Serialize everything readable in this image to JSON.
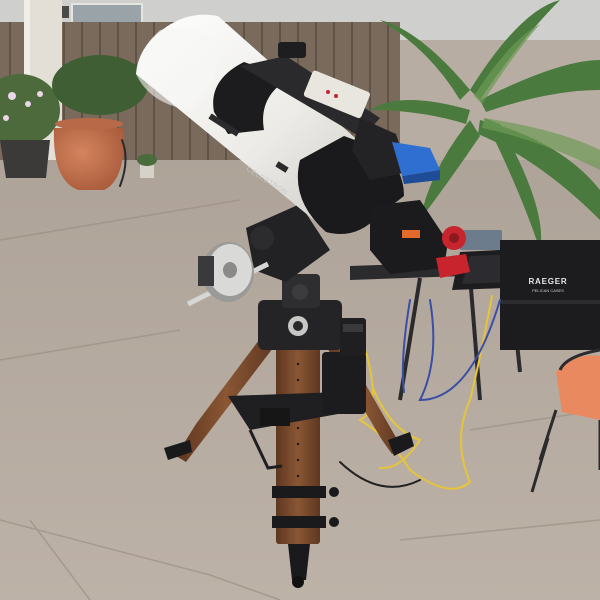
{
  "photo": {
    "subject": "telescope",
    "setting": "patio",
    "tube_brand_text": "CELESTRON",
    "case_brand_text": "RAEGER",
    "case_sub_text": "PELICAN CASES",
    "colors": {
      "sky": "#c9cdd0",
      "fence": "#7b6a5c",
      "patio": "#b4a89d",
      "tube_white": "#efefec",
      "tube_black": "#1a1a1c",
      "mount": "#2a2a2c",
      "tripod_wood": "#7a4a2a",
      "palm": "#3f6a36",
      "pot": "#c2704c",
      "chair_cushion": "#e8885e",
      "cable_yellow": "#e7c43a",
      "cable_blue": "#3b4fa8",
      "red_accessory": "#c8242e",
      "blue_accessory": "#2f6fd1"
    }
  }
}
